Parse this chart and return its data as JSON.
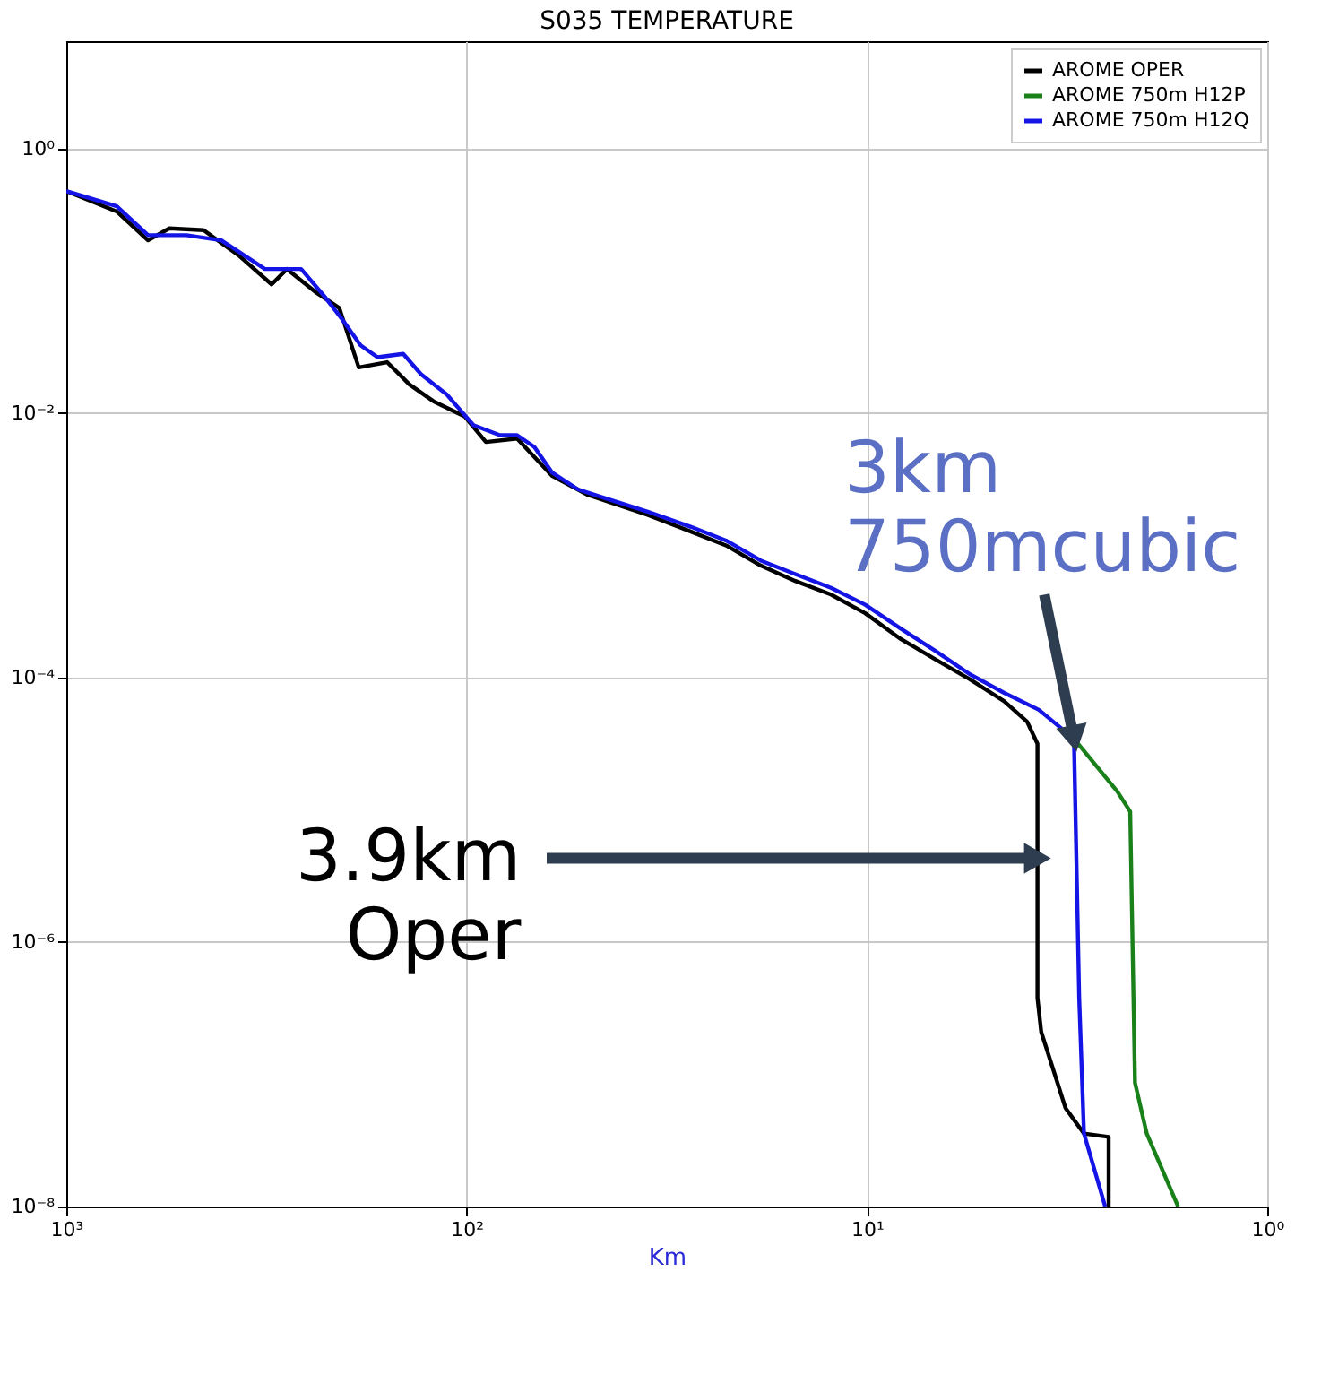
{
  "chart_data": {
    "type": "line",
    "title": "S035 TEMPERATURE",
    "xlabel": "Km",
    "log": "xy",
    "grid": true,
    "legend": "top right",
    "line_style": "solid",
    "marker": "none",
    "xlim": [
      1000,
      1
    ],
    "ylim": [
      1e-08,
      6.5
    ],
    "xticks": [
      {
        "value": 1000,
        "label": "10³"
      },
      {
        "value": 100,
        "label": "10²"
      },
      {
        "value": 10,
        "label": "10¹"
      },
      {
        "value": 1,
        "label": "10⁰"
      }
    ],
    "yticks": [
      {
        "value": 1,
        "label": "10⁰"
      },
      {
        "value": 0.01,
        "label": "10⁻²"
      },
      {
        "value": 0.0001,
        "label": "10⁻⁴"
      },
      {
        "value": 1e-06,
        "label": "10⁻⁶"
      },
      {
        "value": 1e-08,
        "label": "10⁻⁸"
      }
    ],
    "series": [
      {
        "name": "AROME OPER",
        "color": "#000000",
        "x": [
          1000,
          748,
          625,
          553,
          454,
          371,
          307,
          281,
          237,
          208,
          186,
          158,
          139,
          121,
          101,
          89.5,
          74.8,
          61.2,
          50.1,
          35.3,
          27.5,
          22.5,
          18.4,
          15.1,
          12.3,
          10.1,
          8.26,
          6.76,
          5.53,
          4.54,
          3.98,
          3.75,
          3.75,
          3.67,
          3.19,
          2.87,
          2.49,
          2.49
        ],
        "values": [
          0.478,
          0.335,
          0.203,
          0.25,
          0.242,
          0.156,
          0.0942,
          0.123,
          0.0813,
          0.0624,
          0.0222,
          0.0243,
          0.0165,
          0.0123,
          0.00942,
          0.00605,
          0.00643,
          0.00336,
          0.00243,
          0.0017,
          0.00127,
          0.001,
          0.000702,
          0.000538,
          0.000425,
          0.000307,
          0.000197,
          0.000138,
          9.71e-05,
          6.62e-05,
          4.64e-05,
          3.16e-05,
          3.78e-07,
          2.09e-07,
          5.54e-08,
          3.56e-08,
          3.36e-08,
          1e-08
        ]
      },
      {
        "name": "AROME 750m H12P",
        "color": "#1a801a",
        "x": [
          3.04,
          2.37,
          2.2,
          2.14,
          2.0,
          1.67
        ],
        "values": [
          3.45e-05,
          1.38e-05,
          9.71e-06,
          8.63e-08,
          3.56e-08,
          1e-08
        ]
      },
      {
        "name": "AROME 750m H12Q",
        "color": "#1414e6",
        "x": [
          1000,
          748,
          625,
          501,
          410,
          319,
          259,
          225,
          204,
          184,
          167,
          144,
          130,
          112,
          96.2,
          82.6,
          74.8,
          67.7,
          61.2,
          52.7,
          45.4,
          35.3,
          27.5,
          22.5,
          18.4,
          15.1,
          12.3,
          10.1,
          8.26,
          6.76,
          5.53,
          4.54,
          3.72,
          3.04,
          2.95,
          2.87,
          2.54
        ],
        "values": [
          0.478,
          0.367,
          0.222,
          0.222,
          0.203,
          0.123,
          0.123,
          0.0745,
          0.0507,
          0.0326,
          0.0265,
          0.0281,
          0.0197,
          0.0138,
          0.00813,
          0.00681,
          0.00681,
          0.00554,
          0.00356,
          0.00265,
          0.00229,
          0.0018,
          0.00138,
          0.00109,
          0.000767,
          0.000606,
          0.000478,
          0.000356,
          0.000236,
          0.00016,
          0.000106,
          7.67e-05,
          5.71e-05,
          3.45e-05,
          3.78e-07,
          3.56e-08,
          1e-08
        ]
      }
    ],
    "annotations": [
      {
        "text": "3km\n750mcubic",
        "x": 3.04,
        "y": 3.45e-05
      },
      {
        "text": "3.9km\nOper",
        "x": 3.75,
        "y": 4.3e-06
      }
    ]
  }
}
